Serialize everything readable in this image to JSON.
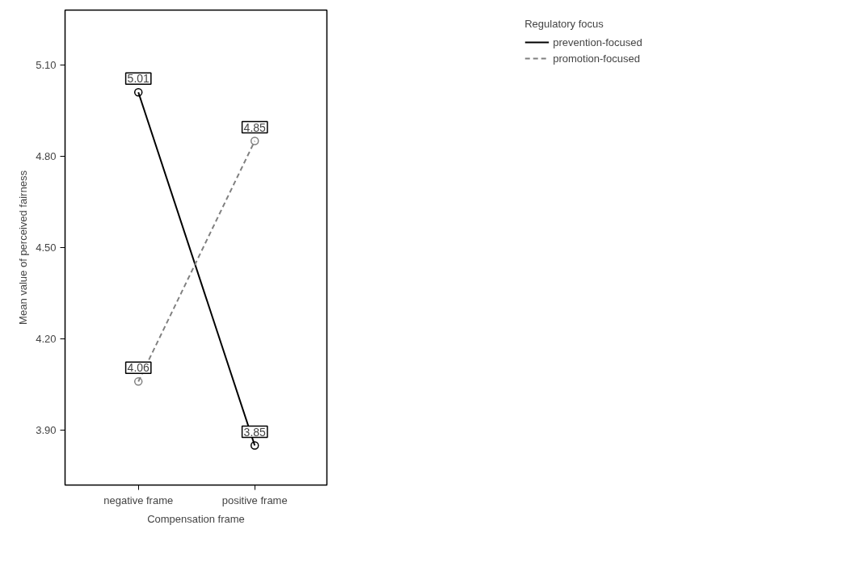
{
  "chart_data": {
    "type": "line",
    "xlabel": "Compensation frame",
    "ylabel": "Mean value of perceived fairness",
    "legend_title": "Regulatory focus",
    "categories": [
      "negative frame",
      "positive frame"
    ],
    "series": [
      {
        "name": "prevention-focused",
        "color": "#000000",
        "values": [
          5.01,
          3.85
        ],
        "line_style": "solid"
      },
      {
        "name": "promotion-focused",
        "color": "#808080",
        "values": [
          4.06,
          4.85
        ],
        "line_style": "dashed"
      }
    ],
    "ylim": [
      3.72,
      5.28
    ],
    "yticks": [
      {
        "value": 3.9,
        "label": "3.90"
      },
      {
        "value": 4.2,
        "label": "4.20"
      },
      {
        "value": 4.5,
        "label": "4.50"
      },
      {
        "value": 4.8,
        "label": "4.80"
      },
      {
        "value": 5.1,
        "label": "5.10"
      }
    ],
    "grid": false,
    "legend": "top right",
    "marker": "circle",
    "data_labels": true
  }
}
